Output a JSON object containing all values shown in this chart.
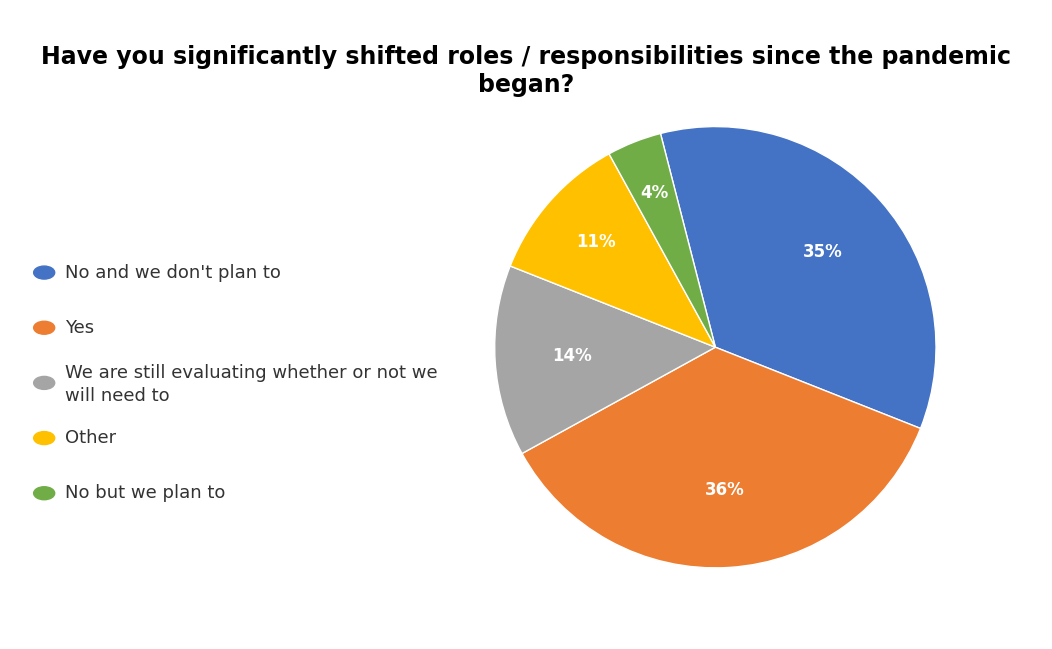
{
  "title": "Have you significantly shifted roles / responsibilities since the pandemic\nbegan?",
  "slices": [
    35,
    36,
    14,
    11,
    4
  ],
  "labels": [
    "No and we don't plan to",
    "Yes",
    "We are still evaluating whether or not we\nwill need to",
    "Other",
    "No but we plan to"
  ],
  "colors": [
    "#4472C4",
    "#ED7D31",
    "#A5A5A5",
    "#FFC000",
    "#70AD47"
  ],
  "pct_labels": [
    "35%",
    "36%",
    "14%",
    "11%",
    "4%"
  ],
  "title_fontsize": 17,
  "legend_fontsize": 13,
  "pct_fontsize": 12,
  "background_color": "#FFFFFF",
  "startangle": 104.4
}
